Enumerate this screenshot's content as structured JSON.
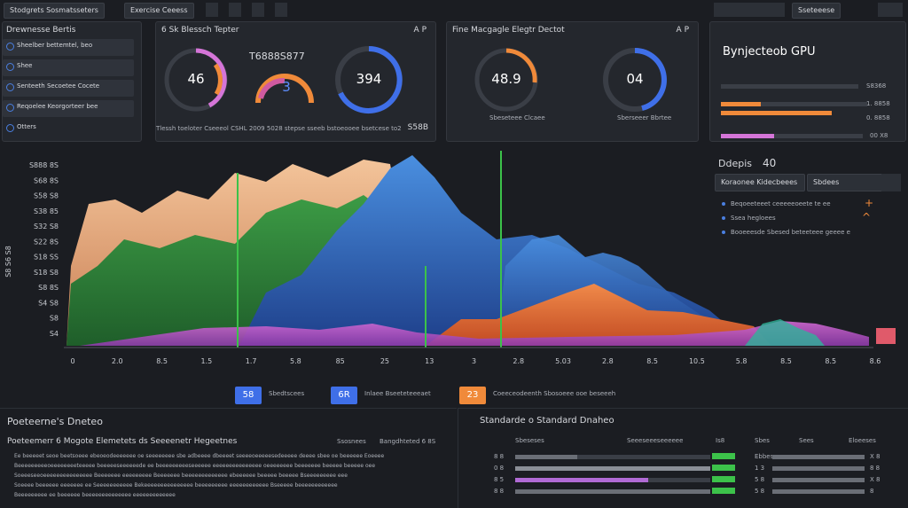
{
  "topbar": {
    "tabs": [
      "Stodgrets Sosmatsseters",
      "Exercise Ceeess"
    ],
    "right_label": "Sseteeese"
  },
  "sidebar": {
    "title": "Drewnesse Bertis",
    "items": [
      "Sheelber bettemtel, beo",
      "Shee",
      "Senteeth Secoetee Cocete",
      "Reqoelee Keorgorteer bee",
      "Otters"
    ]
  },
  "panel1": {
    "title": "6 Sk Blessch Tepter",
    "tag": "A P",
    "gauges": [
      "46",
      "3",
      "394"
    ],
    "code": "T6888S877",
    "footer": "Tlessh toeloter Cseeeol CSHL 2009 5028 stepse sseeb bstoeooee bsetcese to2",
    "footer_value": "S58B"
  },
  "panel2": {
    "title": "Fine Macgagle Elegtr Dectot",
    "tag": "A P",
    "gauges": [
      "48.9",
      "04"
    ],
    "captions": [
      "Sbeseteee Clcaee",
      "Sberseeer Bbrtee"
    ]
  },
  "gpu": {
    "title": "Bynjecteob GPU",
    "values": [
      "S8368",
      "1. 8858",
      "0. 8858",
      "00 X8"
    ]
  },
  "devices": {
    "title": "Ddepis",
    "count": "40",
    "buttons": [
      "Koraonee Kidecbeees",
      "Sbdees"
    ],
    "items": [
      "Beqoeeteeet ceeeeeoeete te ee",
      "Ssea hegloees",
      "Booeeesde Sbesed beteeteee geeee e"
    ]
  },
  "terrain": {
    "yticks": [
      "S888 8S",
      "S68 8S",
      "S58 S8",
      "S38 85",
      "S32 S8",
      "S22 8S",
      "S18 SS",
      "S18 S8",
      "S8 8S",
      "S4 S8",
      "S8",
      "S4"
    ],
    "axis_label": "S8 S6 S8",
    "xticks": [
      "0",
      "2.0",
      "8.5",
      "1.5",
      "1.7",
      "5.8",
      "85",
      "25",
      "13",
      "3",
      "2.8",
      "5.03",
      "2.8",
      "8.5",
      "10.5",
      "5.8",
      "8.5",
      "8.5",
      "8.6"
    ]
  },
  "legend": [
    {
      "badge": "58",
      "label": "Sbedtscees"
    },
    {
      "badge": "6R",
      "label": "Inlaee Bseeteteeeaet"
    },
    {
      "badge": "23",
      "label": "Coeeceodeenth Sbosoeee ooe beseeeh"
    }
  ],
  "report": {
    "title": "Poeteerne's Dneteo",
    "subtitle": "Poeteemerr 6 Mogote Elemetets ds Seeeenetr Hegeetnes",
    "columns": [
      "Ssosnees",
      "Bangdhteted 6 8S"
    ],
    "lines": [
      "Ee beeeeet seoe beetsoeee ebeoeodeeeeeee oe seeeeeeee sbe adbeeee dbeeeet seeeeoeeeeesedeeeee deeee sbee oe beeeeee Eoeeee",
      "Beeeeeeeeeoeeeeeeeeteeeee beeeeeseeeeeede ee beeeeeeeeeseeeeee eeeeeeeeeeeeeee oeeeeeeee beeeeeee beeeee beeeee oee",
      "Soeeeseeoeeeeeeeeeeeeeee Beeeeeee eeeeeeeee Beeeeeee beeeeeeeeeeeee ebeeeeee beeeee beeeee Bseeeeeeeee eee",
      "Soeeee beeeeee eeeeeee ee Seeeeeeeeeee Bekeeeeeeeeeeeeeee beeeeeeeee eeeeeeeeeeee Bseeeee beeeeeeeeeeee",
      "Beeeeeeeee ee beeeeee beeeeeeeeeeeeee eeeeeeeeeeeee"
    ]
  },
  "standard": {
    "title": "Standarde o Standard Dnaheo",
    "head": [
      "Sbeseses",
      "Seeeseeeseeeeee",
      "Is8",
      "Sbes",
      "Sees",
      "Eloeeses"
    ],
    "rows": [
      "8 8",
      "0 8",
      "8 5",
      "8 8"
    ],
    "right_rows": [
      "Ebbes",
      "1 3",
      "5 8",
      "5 8"
    ],
    "right_values": [
      "X 8",
      "8 8",
      "X 8",
      "8"
    ]
  }
}
